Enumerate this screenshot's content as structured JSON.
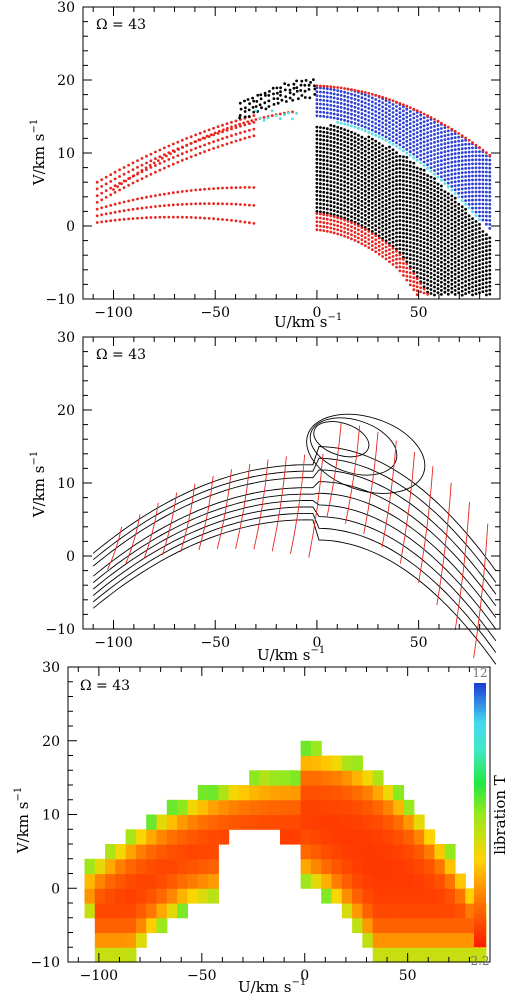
{
  "chart_data": [
    {
      "type": "scatter",
      "annotation": "Ω = 43",
      "xlabel": "U/km s",
      "xlabel_sup": "−1",
      "ylabel": "V/km s",
      "ylabel_sup": "−1",
      "xlim": [
        -115,
        90
      ],
      "ylim": [
        -10,
        30
      ],
      "xticks": [
        -100,
        -50,
        0,
        50
      ],
      "yticks": [
        -10,
        0,
        10,
        20,
        30
      ],
      "series": [
        {
          "color": "#e8261f",
          "region": "outer arc edges and far-left wing"
        },
        {
          "color": "#000000",
          "region": "lower-right band and upper crest"
        },
        {
          "color": "#2b3fd4",
          "region": "upper-right band"
        },
        {
          "color": "#52e0e0",
          "region": "inner boundary"
        }
      ]
    },
    {
      "type": "line",
      "annotation": "Ω = 43",
      "xlabel": "U/km s",
      "xlabel_sup": "−1",
      "ylabel": "V/km s",
      "ylabel_sup": "−1",
      "xlim": [
        -115,
        90
      ],
      "ylim": [
        -10,
        30
      ],
      "xticks": [
        -100,
        -50,
        0,
        50
      ],
      "yticks": [
        -10,
        0,
        10,
        20,
        30
      ],
      "series": [
        {
          "color": "#000000",
          "kind": "contours"
        },
        {
          "color": "#e8261f",
          "kind": "transverse lines"
        }
      ]
    },
    {
      "type": "heatmap",
      "annotation": "Ω = 43",
      "xlabel": "U/km s",
      "xlabel_sup": "−1",
      "ylabel": "V/km s",
      "ylabel_sup": "−1",
      "xlim": [
        -115,
        90
      ],
      "ylim": [
        -10,
        30
      ],
      "xticks": [
        -100,
        -50,
        0,
        50
      ],
      "yticks": [
        -10,
        0,
        10,
        20,
        30
      ],
      "colorbar": {
        "label": "libration T",
        "min": "2.2",
        "max": "12"
      }
    }
  ]
}
